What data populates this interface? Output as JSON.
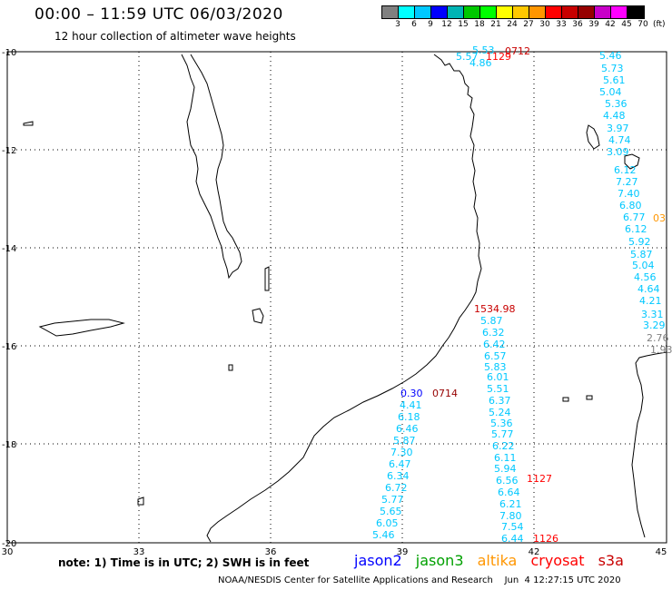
{
  "header": {
    "title": "00:00 – 11:59 UTC 06/03/2020",
    "subtitle": "12 hour collection of altimeter wave heights"
  },
  "legend": {
    "unit": "(ft)",
    "colors": [
      "#808080",
      "#00ffff",
      "#00c8ff",
      "#0000ff",
      "#00b4b4",
      "#00c800",
      "#00ff00",
      "#ffff00",
      "#ffc800",
      "#ff9600",
      "#ff0000",
      "#c80000",
      "#960000",
      "#c800c8",
      "#ff00ff",
      "#000000"
    ],
    "labels": [
      "3",
      "6",
      "9",
      "12",
      "15",
      "18",
      "21",
      "24",
      "27",
      "30",
      "33",
      "36",
      "39",
      "42",
      "45",
      "70"
    ]
  },
  "axes": {
    "lon_labels": [
      "30",
      "33",
      "36",
      "39",
      "42",
      "45"
    ],
    "lat_labels": [
      "-10",
      "-12",
      "-14",
      "-16",
      "-18",
      "-20"
    ]
  },
  "tracks": {
    "track_a": {
      "color": "#00c8ff",
      "values": [
        "5.46",
        "5.73",
        "5.61",
        "5.04",
        "5.36",
        "4.48",
        "3.97",
        "4.74",
        "3.09",
        "6.12",
        "7.27",
        "7.40",
        "6.80",
        "6.77",
        "6.12",
        "5.92",
        "5.87",
        "5.04",
        "4.56",
        "4.64",
        "4.21",
        "3.31",
        "3.29"
      ],
      "gray_values": [
        "2.76",
        "1.93"
      ]
    },
    "track_b": {
      "color": "#00c8ff",
      "values": [
        "5.87",
        "6.32",
        "6.42",
        "6.57",
        "5.83",
        "6.01",
        "5.51",
        "6.37",
        "5.24",
        "5.36",
        "5.77",
        "6.22",
        "6.11",
        "5.94",
        "6.56",
        "6.64",
        "6.21",
        "7.80",
        "7.54",
        "6.44"
      ]
    },
    "track_c": {
      "color": "#00c8ff",
      "values": [
        "4.41",
        "6.18",
        "6.46",
        "5.87",
        "7.30",
        "6.47",
        "6.34",
        "6.72",
        "5.77",
        "5.65",
        "6.05",
        "5.46"
      ]
    },
    "top_cluster": [
      "5.53",
      "5.57",
      "4.86"
    ]
  },
  "time_labels": {
    "t0712": "0712",
    "t1129": "1129",
    "t0714": "0714",
    "t1127": "1127",
    "t1126": "1126",
    "t03": "03",
    "t1534": "1534.98",
    "t0730": "0.30"
  },
  "footer": {
    "note": "note:  1) Time is in UTC; 2) SWH is in feet",
    "satellites": {
      "jason2": "jason2",
      "jason3": "jason3",
      "altika": "altika",
      "cryosat": "cryosat",
      "s3a": "s3a"
    },
    "sat_colors": {
      "jason2": "#0000ff",
      "jason3": "#00a000",
      "altika": "#ff9600",
      "cryosat": "#ff0000",
      "s3a": "#c80000"
    },
    "credit": "NOAA/NESDIS Center for Satellite Applications and Research    Jun  4 12:27:15 UTC 2020"
  }
}
